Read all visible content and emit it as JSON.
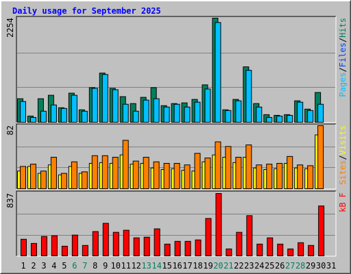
{
  "chart_data": {
    "type": "bar",
    "title": "Daily usage for September 2025",
    "categories": [
      "1",
      "2",
      "3",
      "4",
      "5",
      "6",
      "7",
      "8",
      "9",
      "10",
      "11",
      "12",
      "13",
      "14",
      "15",
      "16",
      "17",
      "18",
      "19",
      "20",
      "21",
      "22",
      "23",
      "24",
      "25",
      "26",
      "27",
      "28",
      "29",
      "30",
      "31"
    ],
    "label_color": "#000000",
    "weekend_color": "#00805c",
    "weekends": [
      6,
      7,
      13,
      14,
      20,
      21,
      27,
      28
    ],
    "panels": [
      {
        "ylim": [
          0,
          2254
        ],
        "yticks": [
          2254
        ],
        "separator": "/",
        "legend": [
          {
            "name": "Pages",
            "color": "#00c0ff"
          },
          {
            "name": "Files",
            "color": "#0040ff"
          },
          {
            "name": "Hits",
            "color": "#00805c"
          }
        ],
        "series": [
          {
            "color": "#00805c",
            "values": [
              510,
              135,
              510,
              585,
              315,
              630,
              270,
              750,
              1065,
              735,
              555,
              405,
              540,
              750,
              360,
              405,
              420,
              495,
              810,
              2254,
              270,
              495,
              1200,
              405,
              165,
              150,
              165,
              465,
              285,
              645,
              null
            ]
          },
          {
            "color": "#00c0ff",
            "values": [
              450,
              105,
              240,
              375,
              300,
              585,
              240,
              735,
              1035,
              705,
              390,
              240,
              480,
              510,
              330,
              390,
              330,
              435,
              720,
              2160,
              255,
              465,
              1125,
              330,
              105,
              135,
              150,
              435,
              255,
              390,
              null
            ]
          }
        ]
      },
      {
        "ylim": [
          0,
          82
        ],
        "yticks": [
          82
        ],
        "separator": "/",
        "legend": [
          {
            "name": "Sites",
            "color": "#ff8000"
          },
          {
            "name": "Visits",
            "color": "#ffff00"
          }
        ],
        "series": [
          {
            "color": "#ffff00",
            "values": [
              23,
              29,
              20,
              31,
              18,
              29,
              20,
              33,
              34,
              33,
              44,
              32,
              33,
              27,
              25,
              26,
              24,
              23,
              35,
              44,
              41,
              34,
              41,
              27,
              25,
              26,
              33,
              27,
              26,
              70,
              null
            ]
          },
          {
            "color": "#ff8000",
            "values": [
              29,
              32,
              23,
              41,
              20,
              35,
              22,
              43,
              43,
              41,
              63,
              36,
              41,
              35,
              33,
              33,
              31,
              46,
              40,
              61,
              55,
              41,
              57,
              31,
              32,
              33,
              42,
              31,
              30,
              82,
              null
            ]
          }
        ]
      },
      {
        "ylim": [
          0,
          837
        ],
        "yticks": [
          837
        ],
        "separator": "/",
        "legend": [
          {
            "name": "kB F",
            "color": "#ff0000"
          }
        ],
        "series": [
          {
            "color": "#ff0000",
            "values": [
              223,
              167,
              260,
              270,
              130,
              279,
              140,
              326,
              437,
              316,
              344,
              242,
              251,
              363,
              158,
              195,
              195,
              214,
              502,
              837,
              93,
              316,
              540,
              158,
              242,
              158,
              93,
              177,
              140,
              670,
              null
            ]
          }
        ]
      }
    ]
  }
}
